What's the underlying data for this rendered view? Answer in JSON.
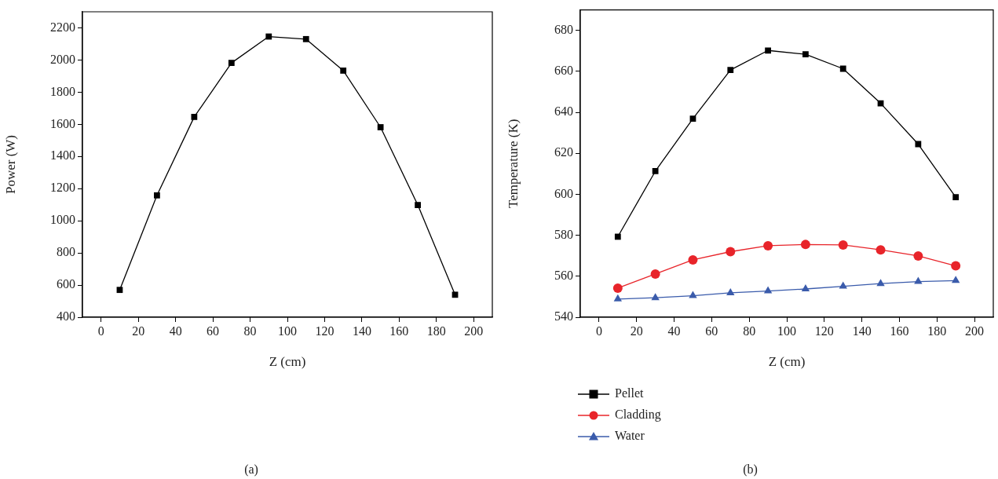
{
  "chart_data": [
    {
      "type": "line",
      "xlabel": "Z (cm)",
      "ylabel": "Power (W)",
      "x": [
        10,
        30,
        50,
        70,
        90,
        110,
        130,
        150,
        170,
        190
      ],
      "series": [
        {
          "color": "#000000",
          "marker": "square",
          "values": [
            570,
            1158,
            1646,
            1982,
            2146,
            2130,
            1934,
            1582,
            1098,
            540
          ]
        }
      ],
      "xlim": [
        -10,
        210
      ],
      "xticks": [
        0,
        20,
        40,
        60,
        80,
        100,
        120,
        140,
        160,
        180,
        200
      ],
      "ylim": [
        400,
        2300
      ],
      "yticks": [
        400,
        600,
        800,
        1000,
        1200,
        1400,
        1600,
        1800,
        2000,
        2200
      ],
      "grid": false,
      "legend": false,
      "annotations": [
        "(a)"
      ]
    },
    {
      "type": "line",
      "xlabel": "Z (cm)",
      "ylabel": "Temperature (K)",
      "x": [
        10,
        30,
        50,
        70,
        90,
        110,
        130,
        150,
        170,
        190
      ],
      "series": [
        {
          "name": "Pellet",
          "color": "#000000",
          "marker": "square",
          "values": [
            579.3,
            611.3,
            636.9,
            660.7,
            670.2,
            668.3,
            661.3,
            644.4,
            624.5,
            598.6
          ]
        },
        {
          "name": "Cladding",
          "color": "#e8242a",
          "marker": "circle",
          "values": [
            554.2,
            561.1,
            568.0,
            572.0,
            574.9,
            575.5,
            575.3,
            572.9,
            569.9,
            565.1
          ]
        },
        {
          "name": "Water",
          "color": "#3a5bab",
          "marker": "triangle",
          "values": [
            548.9,
            549.5,
            550.5,
            551.9,
            552.8,
            553.8,
            555.1,
            556.4,
            557.4,
            557.9
          ]
        }
      ],
      "xlim": [
        -10,
        210
      ],
      "xticks": [
        0,
        20,
        40,
        60,
        80,
        100,
        120,
        140,
        160,
        180,
        200
      ],
      "ylim": [
        540,
        690
      ],
      "yticks": [
        540,
        560,
        580,
        600,
        620,
        640,
        660,
        680
      ],
      "grid": false,
      "legend": "bottom left",
      "annotations": [
        "(b)"
      ]
    }
  ]
}
